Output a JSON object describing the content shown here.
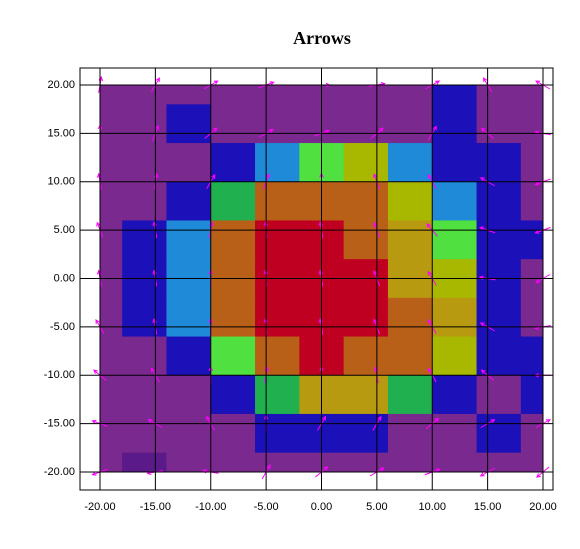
{
  "chart_data": {
    "type": "contour",
    "title": "Arrows",
    "xlim": [
      -20,
      20
    ],
    "ylim": [
      -20,
      20
    ],
    "xticks": [
      {
        "value": -20,
        "label": "-20.00"
      },
      {
        "value": -15,
        "label": "-15.00"
      },
      {
        "value": -10,
        "label": "-10.00"
      },
      {
        "value": -5,
        "label": "-5.00"
      },
      {
        "value": 0,
        "label": "0.00"
      },
      {
        "value": 5,
        "label": "5.00"
      },
      {
        "value": 10,
        "label": "10.00"
      },
      {
        "value": 15,
        "label": "15.00"
      },
      {
        "value": 20,
        "label": "20.00"
      }
    ],
    "yticks": [
      {
        "value": -20,
        "label": "-20.00"
      },
      {
        "value": -15,
        "label": "-15.00"
      },
      {
        "value": -10,
        "label": "-10.00"
      },
      {
        "value": -5,
        "label": "-5.00"
      },
      {
        "value": 0,
        "label": "0.00"
      },
      {
        "value": 5,
        "label": "5.00"
      },
      {
        "value": 10,
        "label": "10.00"
      },
      {
        "value": 15,
        "label": "15.00"
      },
      {
        "value": 20,
        "label": "20.00"
      }
    ],
    "grid": true,
    "x": [
      -20,
      -16,
      -12,
      -8,
      -4,
      0,
      4,
      8,
      12,
      16,
      20
    ],
    "y": [
      20,
      16,
      12,
      8,
      4,
      0,
      -4,
      -8,
      -12,
      -16,
      -20
    ],
    "z": [
      [
        1,
        1,
        1,
        1,
        1,
        1,
        1,
        1,
        2,
        1,
        1
      ],
      [
        1,
        1,
        2,
        1,
        1,
        1,
        1,
        1,
        2,
        1,
        1
      ],
      [
        1,
        1,
        1,
        2,
        3,
        5,
        6,
        3,
        2,
        2,
        1
      ],
      [
        1,
        1,
        2,
        4,
        8,
        8,
        8,
        6,
        3,
        2,
        1
      ],
      [
        1,
        2,
        3,
        8,
        9,
        9,
        8,
        7,
        5,
        2,
        2
      ],
      [
        1,
        2,
        3,
        8,
        9,
        9,
        9,
        7,
        6,
        2,
        1
      ],
      [
        1,
        2,
        3,
        8,
        9,
        9,
        9,
        8,
        7,
        2,
        1
      ],
      [
        1,
        1,
        2,
        5,
        8,
        9,
        8,
        8,
        6,
        2,
        2
      ],
      [
        1,
        1,
        1,
        2,
        4,
        7,
        7,
        4,
        2,
        1,
        2
      ],
      [
        1,
        1,
        1,
        1,
        2,
        2,
        2,
        1,
        1,
        2,
        1
      ],
      [
        1,
        0,
        1,
        1,
        1,
        1,
        1,
        1,
        1,
        1,
        1
      ]
    ],
    "colors": [
      "#5a1a8a",
      "#7a2a8e",
      "#1c10b8",
      "#1e8ad8",
      "#20b050",
      "#50e040",
      "#a8b800",
      "#b89a10",
      "#b86018",
      "#c00020"
    ],
    "arrows": {
      "color": "#ff00ff",
      "x": [
        -20,
        -15,
        -10,
        -5,
        0,
        5,
        10,
        15,
        20
      ],
      "y": [
        20,
        15,
        10,
        5,
        0,
        -5,
        -10,
        -15,
        -20
      ],
      "angle": [
        [
          80,
          60,
          30,
          20,
          0,
          10,
          30,
          120,
          150
        ],
        [
          90,
          70,
          40,
          30,
          20,
          40,
          60,
          140,
          170
        ],
        [
          100,
          80,
          60,
          70,
          90,
          110,
          120,
          150,
          200
        ],
        [
          110,
          100,
          80,
          95,
          100,
          110,
          130,
          160,
          200
        ],
        [
          100,
          100,
          90,
          95,
          100,
          110,
          120,
          170,
          210
        ],
        [
          120,
          100,
          90,
          95,
          100,
          110,
          120,
          150,
          190
        ],
        [
          140,
          120,
          90,
          80,
          90,
          100,
          120,
          140,
          180
        ],
        [
          160,
          150,
          120,
          90,
          60,
          60,
          40,
          30,
          30
        ],
        [
          200,
          190,
          170,
          60,
          40,
          30,
          20,
          210,
          220
        ]
      ]
    }
  }
}
